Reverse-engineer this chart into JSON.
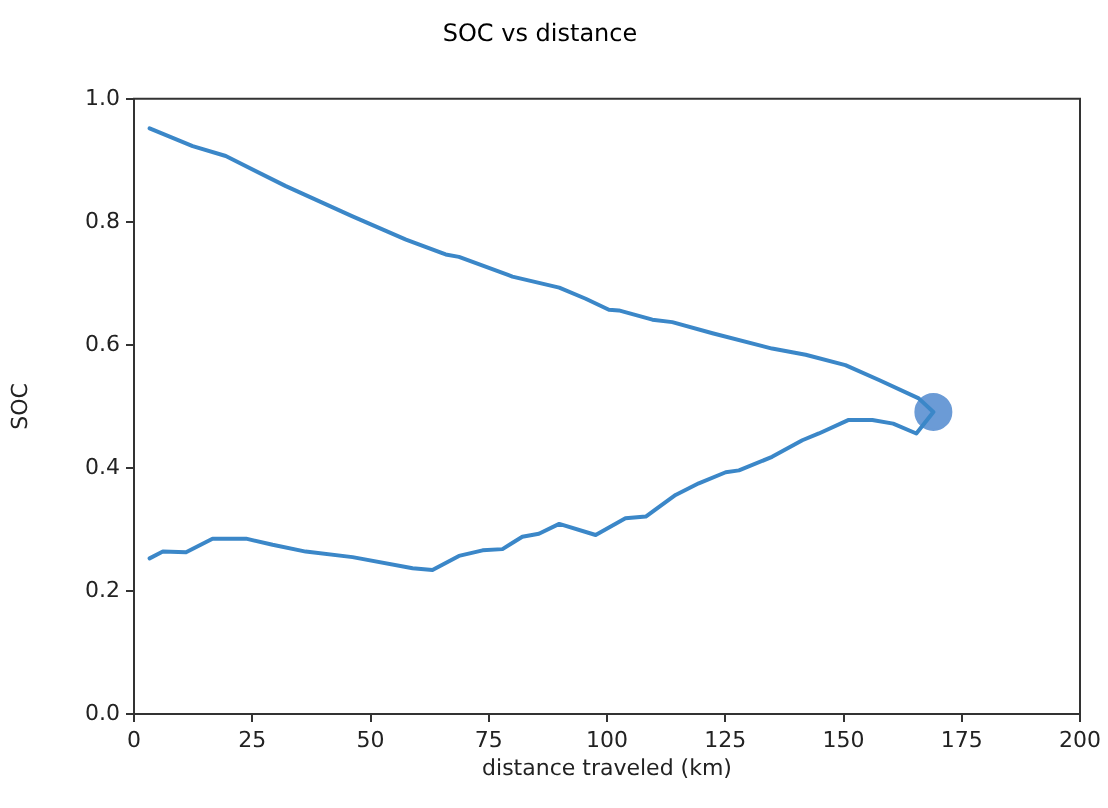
{
  "chart_data": {
    "type": "line",
    "title": "SOC vs distance",
    "xlabel": "distance traveled (km)",
    "ylabel": "SOC",
    "xlim": [
      0,
      200
    ],
    "xticks": [
      0,
      25,
      50,
      75,
      100,
      125,
      150,
      175,
      200
    ],
    "ylim": [
      0,
      1.0
    ],
    "yticks": [
      {
        "value": 0,
        "label": "0.0"
      },
      {
        "value": 0.2,
        "label": "0.2"
      },
      {
        "value": 0.4,
        "label": "0.4"
      },
      {
        "value": 0.6,
        "label": "0.6"
      },
      {
        "value": 0.8,
        "label": "0.8"
      },
      {
        "value": 1.0,
        "label": "1.0"
      }
    ],
    "series": [
      {
        "type": "line",
        "marker": "none",
        "color": "#3b87c8",
        "x": [
          3.3,
          6.1,
          11.0,
          16.6,
          23.7,
          29.3,
          36.3,
          46.2,
          58.9,
          63.1,
          68.7,
          73.7,
          77.9,
          82.1,
          85.6,
          89.9,
          97.6,
          103.9,
          108.2,
          114.5,
          119.4,
          125.1,
          127.9,
          134.9,
          141.3,
          144.8,
          151.1,
          156.1,
          160.5,
          165.4,
          169.0,
          165.9,
          157.5,
          150.4,
          142.0,
          134.9,
          122.3,
          113.8,
          109.6,
          102.5,
          100.4,
          95.5,
          89.9,
          80.0,
          68.7,
          65.9,
          57.5,
          46.2,
          32.1,
          19.4,
          12.4,
          3.3
        ],
        "values": [
          0.253,
          0.264,
          0.263,
          0.285,
          0.285,
          0.275,
          0.264,
          0.255,
          0.237,
          0.234,
          0.257,
          0.266,
          0.268,
          0.288,
          0.293,
          0.309,
          0.291,
          0.318,
          0.321,
          0.356,
          0.375,
          0.393,
          0.396,
          0.418,
          0.445,
          0.456,
          0.478,
          0.478,
          0.472,
          0.456,
          0.491,
          0.513,
          0.543,
          0.567,
          0.584,
          0.594,
          0.619,
          0.637,
          0.641,
          0.656,
          0.657,
          0.675,
          0.693,
          0.711,
          0.743,
          0.747,
          0.771,
          0.809,
          0.858,
          0.907,
          0.923,
          0.952
        ]
      },
      {
        "type": "scatter",
        "marker": "circle",
        "color": "#6b9bd6",
        "x": [
          169.0
        ],
        "values": [
          0.491
        ]
      }
    ]
  }
}
